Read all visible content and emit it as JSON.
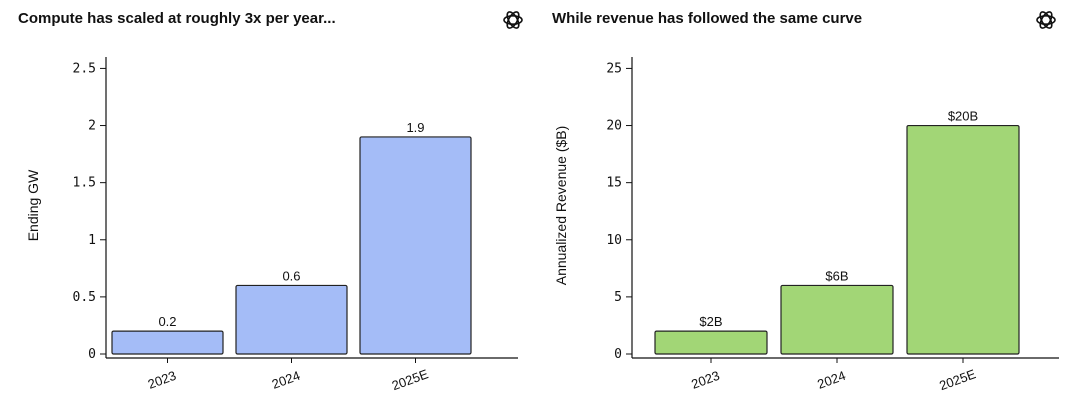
{
  "chart_data": [
    {
      "type": "bar",
      "title": "Compute has scaled at roughly 3x per year...",
      "xlabel": "",
      "ylabel": "Ending GW",
      "categories": [
        "2023",
        "2024",
        "2025E"
      ],
      "values": [
        0.2,
        0.6,
        1.9
      ],
      "data_labels": [
        "0.2",
        "0.6",
        "1.9"
      ],
      "ylim": [
        0,
        2.6
      ],
      "yticks": [
        0,
        0.5,
        1,
        1.5,
        2,
        2.5
      ],
      "ytick_labels": [
        "0",
        "0.5",
        "1",
        "1.5",
        "2",
        "2.5"
      ],
      "bar_color": "#a4bcf7",
      "grid": false,
      "icon": "openai-logo-icon"
    },
    {
      "type": "bar",
      "title": "While revenue has followed the same curve",
      "xlabel": "",
      "ylabel": "Annualized Revenue ($B)",
      "categories": [
        "2023",
        "2024",
        "2025E"
      ],
      "values": [
        2,
        6,
        20
      ],
      "data_labels": [
        "$2B",
        "$6B",
        "$20B"
      ],
      "ylim": [
        0,
        26
      ],
      "yticks": [
        0,
        5,
        10,
        15,
        20,
        25
      ],
      "ytick_labels": [
        "0",
        "5",
        "10",
        "15",
        "20",
        "25"
      ],
      "bar_color": "#a2d676",
      "grid": false,
      "icon": "openai-logo-icon"
    }
  ]
}
